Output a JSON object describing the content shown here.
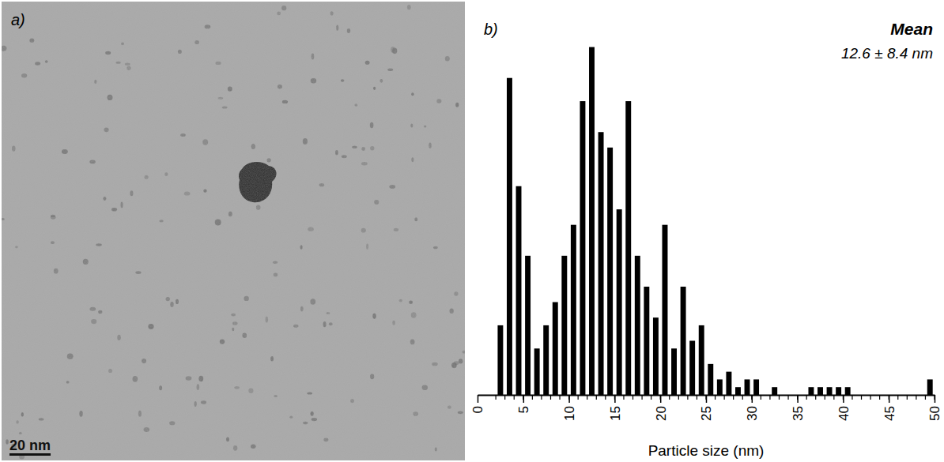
{
  "chart_data": [
    {
      "type": "image",
      "panel_label": "a)",
      "scale_bar_label": "20 nm"
    },
    {
      "type": "histogram",
      "panel_label": "b)",
      "annotation_title": "Mean",
      "annotation": "12.6 ± 8.4 nm",
      "x_label": "Particle size (nm)",
      "bins": [
        2,
        3,
        4,
        5,
        6,
        7,
        8,
        9,
        10,
        11,
        12,
        13,
        14,
        15,
        16,
        17,
        18,
        19,
        20,
        21,
        22,
        23,
        24,
        25,
        26,
        27,
        28,
        29,
        30,
        31,
        32,
        33,
        34,
        35,
        36,
        37,
        38,
        39,
        40,
        41,
        42,
        43,
        44,
        45,
        46,
        47,
        48,
        49,
        50
      ],
      "counts": [
        9,
        41,
        27,
        18,
        6,
        9,
        12,
        18,
        22,
        38,
        45,
        34,
        32,
        24,
        38,
        18,
        14,
        10,
        22,
        6,
        14,
        7,
        9,
        4,
        2,
        3,
        1,
        2,
        2,
        0,
        1,
        0,
        0,
        0,
        1,
        1,
        1,
        1,
        1,
        0,
        0,
        0,
        0,
        0,
        0,
        0,
        0,
        2
      ],
      "color": "#000000",
      "xlim": [
        0,
        50
      ],
      "ylim": [
        0,
        47
      ],
      "xticks": [
        0,
        5,
        10,
        15,
        20,
        25,
        30,
        35,
        40,
        45,
        50
      ],
      "tick_labels": "x"
    }
  ]
}
